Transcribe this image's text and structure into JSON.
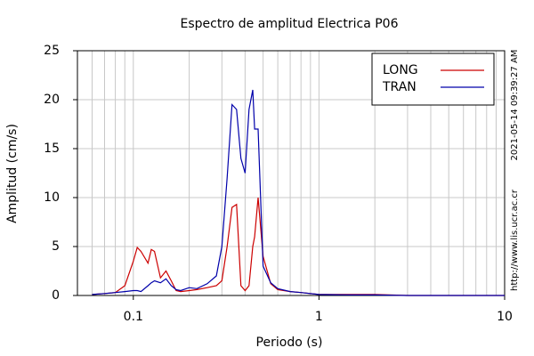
{
  "chart_data": {
    "type": "line",
    "title": "Espectro de amplitud Electrica P06",
    "x_label": "Periodo (s)",
    "y_label": "Amplitud (cm/s)",
    "timestamp": "2021-05-14 09:39:27 AM",
    "source": "http://www.lis.ucr.ac.cr",
    "x_log": true,
    "grid": true,
    "legend_position": "upper right",
    "xlim": [
      0.05,
      10
    ],
    "ylim": [
      0,
      25
    ],
    "xticks": [
      0.1,
      1,
      10
    ],
    "xminorticks": [
      0.06,
      0.07,
      0.08,
      0.09,
      0.2,
      0.3,
      0.4,
      0.5,
      0.6,
      0.7,
      0.8,
      0.9,
      2,
      3,
      4,
      5,
      6,
      7,
      8,
      9
    ],
    "yticks": [
      0,
      5,
      10,
      15,
      20,
      25
    ],
    "x": [
      0.06,
      0.07,
      0.08,
      0.09,
      0.1,
      0.105,
      0.11,
      0.12,
      0.125,
      0.13,
      0.14,
      0.15,
      0.16,
      0.17,
      0.18,
      0.2,
      0.22,
      0.25,
      0.28,
      0.3,
      0.32,
      0.34,
      0.36,
      0.38,
      0.4,
      0.42,
      0.44,
      0.45,
      0.47,
      0.5,
      0.55,
      0.6,
      0.7,
      0.8,
      1,
      1.5,
      2,
      3,
      5,
      10
    ],
    "series": [
      {
        "name": "LONG",
        "color": "#cc0000",
        "values": [
          0.1,
          0.2,
          0.3,
          1.0,
          3.5,
          4.9,
          4.5,
          3.3,
          4.7,
          4.5,
          1.8,
          2.5,
          1.5,
          0.5,
          0.4,
          0.5,
          0.6,
          0.8,
          1.0,
          1.5,
          5,
          9,
          9.3,
          1.0,
          0.5,
          1,
          5,
          6,
          10,
          4,
          1.2,
          0.6,
          0.4,
          0.3,
          0.1,
          0.1,
          0.1,
          0,
          0,
          0
        ]
      },
      {
        "name": "TRAN",
        "color": "#0000aa",
        "values": [
          0.1,
          0.2,
          0.3,
          0.4,
          0.5,
          0.5,
          0.4,
          1.0,
          1.3,
          1.5,
          1.3,
          1.7,
          1.0,
          0.6,
          0.5,
          0.8,
          0.7,
          1.2,
          2,
          5,
          12,
          19.5,
          19,
          14,
          12.5,
          19,
          21,
          17,
          17,
          3,
          1.3,
          0.7,
          0.4,
          0.3,
          0.1,
          0.05,
          0.05,
          0,
          0,
          0
        ]
      }
    ]
  }
}
